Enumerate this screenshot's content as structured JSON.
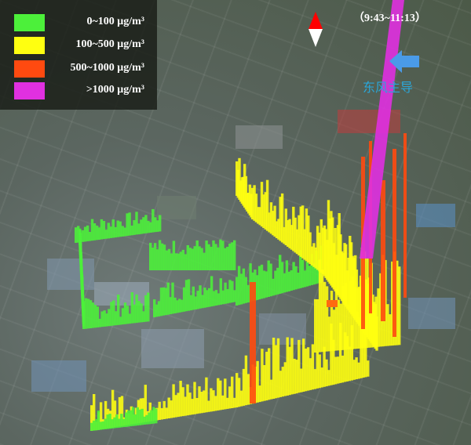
{
  "legend": {
    "items": [
      {
        "label": "0~100 μg/m³",
        "color": "#4cf03a"
      },
      {
        "label": "100~500 μg/m³",
        "color": "#ffff10"
      },
      {
        "label": "500~1000 μg/m³",
        "color": "#ff4a10"
      },
      {
        "label": ">1000 μg/m³",
        "color": "#e030e0"
      }
    ]
  },
  "time_range": "（9:43~11:13）",
  "wind": {
    "label": "东风主导",
    "arrow_color": "#4a9be8"
  },
  "compass": {
    "icon": "north-arrow-icon",
    "north_color": "#ff0000"
  }
}
